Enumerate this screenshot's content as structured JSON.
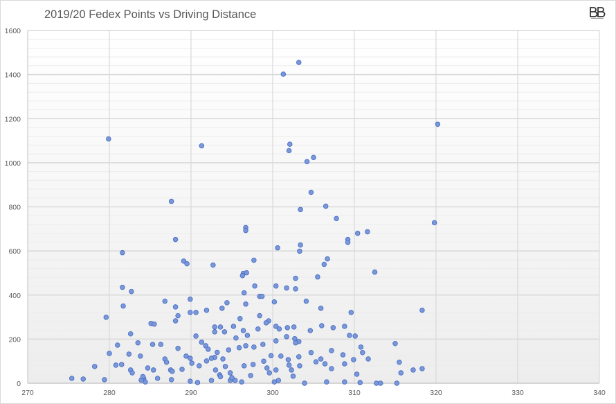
{
  "chart_data": {
    "type": "scatter",
    "title": "2019/20 Fedex Points vs Driving Distance",
    "logo_text": "BB",
    "xlim": [
      270,
      340
    ],
    "ylim": [
      0,
      1600
    ],
    "x_ticks": [
      "270",
      "280",
      "290",
      "300",
      "310",
      "320",
      "330",
      "340"
    ],
    "y_ticks": [
      "0",
      "200",
      "400",
      "600",
      "800",
      "1000",
      "1200",
      "1400",
      "1600"
    ],
    "grid": true,
    "legend": "none",
    "marker_color": "#7a97d8",
    "marker_edge": "#4a6fc6",
    "points": [
      [
        279.9,
        1108
      ],
      [
        291.3,
        1077
      ],
      [
        301.3,
        1402
      ],
      [
        303.2,
        1455
      ],
      [
        302.1,
        1084
      ],
      [
        302.0,
        1055
      ],
      [
        305.0,
        1024
      ],
      [
        304.2,
        1005
      ],
      [
        320.2,
        1175
      ],
      [
        287.6,
        825
      ],
      [
        288.1,
        652
      ],
      [
        319.8,
        728
      ],
      [
        296.7,
        706
      ],
      [
        296.7,
        693
      ],
      [
        304.7,
        866
      ],
      [
        306.5,
        803
      ],
      [
        307.8,
        747
      ],
      [
        303.4,
        788
      ],
      [
        310.4,
        680
      ],
      [
        311.6,
        687
      ],
      [
        309.2,
        652
      ],
      [
        309.2,
        639
      ],
      [
        300.6,
        614
      ],
      [
        303.4,
        627
      ],
      [
        303.3,
        599
      ],
      [
        281.6,
        592
      ],
      [
        297.7,
        558
      ],
      [
        289.1,
        554
      ],
      [
        289.5,
        542
      ],
      [
        292.7,
        536
      ],
      [
        306.7,
        564
      ],
      [
        306.3,
        539
      ],
      [
        312.5,
        504
      ],
      [
        296.4,
        498
      ],
      [
        296.8,
        501
      ],
      [
        296.3,
        488
      ],
      [
        305.5,
        482
      ],
      [
        302.8,
        476
      ],
      [
        281.6,
        435
      ],
      [
        282.7,
        416
      ],
      [
        297.8,
        441
      ],
      [
        300.4,
        441
      ],
      [
        301.7,
        432
      ],
      [
        302.8,
        428
      ],
      [
        296.5,
        410
      ],
      [
        298.4,
        394
      ],
      [
        298.7,
        394
      ],
      [
        289.9,
        381
      ],
      [
        286.8,
        372
      ],
      [
        294.4,
        365
      ],
      [
        296.7,
        359
      ],
      [
        304.1,
        372
      ],
      [
        300.2,
        369
      ],
      [
        281.7,
        350
      ],
      [
        288.1,
        346
      ],
      [
        293.8,
        340
      ],
      [
        305.9,
        340
      ],
      [
        318.3,
        331
      ],
      [
        289.9,
        321
      ],
      [
        290.6,
        321
      ],
      [
        309.6,
        321
      ],
      [
        279.6,
        299
      ],
      [
        291.9,
        331
      ],
      [
        288.4,
        306
      ],
      [
        296.0,
        293
      ],
      [
        298.4,
        306
      ],
      [
        299.5,
        283
      ],
      [
        299.2,
        274
      ],
      [
        288.1,
        283
      ],
      [
        285.1,
        271
      ],
      [
        285.5,
        268
      ],
      [
        295.2,
        258
      ],
      [
        292.9,
        255
      ],
      [
        293.6,
        255
      ],
      [
        300.4,
        258
      ],
      [
        301.8,
        252
      ],
      [
        302.6,
        255
      ],
      [
        300.8,
        246
      ],
      [
        296.4,
        239
      ],
      [
        298.2,
        246
      ],
      [
        306.0,
        261
      ],
      [
        307.4,
        252
      ],
      [
        308.8,
        258
      ],
      [
        282.6,
        224
      ],
      [
        290.6,
        214
      ],
      [
        292.9,
        233
      ],
      [
        294.1,
        233
      ],
      [
        295.5,
        205
      ],
      [
        296.9,
        217
      ],
      [
        302.7,
        202
      ],
      [
        303.2,
        189
      ],
      [
        304.6,
        239
      ],
      [
        310.1,
        214
      ],
      [
        309.4,
        217
      ],
      [
        315.0,
        180
      ],
      [
        310.8,
        164
      ],
      [
        301.7,
        211
      ],
      [
        281.0,
        173
      ],
      [
        283.5,
        183
      ],
      [
        285.3,
        176
      ],
      [
        286.3,
        176
      ],
      [
        288.4,
        158
      ],
      [
        291.3,
        186
      ],
      [
        291.8,
        170
      ],
      [
        292.1,
        154
      ],
      [
        294.6,
        151
      ],
      [
        295.9,
        161
      ],
      [
        296.7,
        170
      ],
      [
        297.7,
        164
      ],
      [
        298.8,
        176
      ],
      [
        302.8,
        183
      ],
      [
        300.4,
        192
      ],
      [
        304.7,
        139
      ],
      [
        307.2,
        148
      ],
      [
        311.0,
        139
      ],
      [
        308.6,
        129
      ],
      [
        280.0,
        135
      ],
      [
        282.4,
        132
      ],
      [
        283.8,
        123
      ],
      [
        286.8,
        110
      ],
      [
        289.4,
        123
      ],
      [
        289.9,
        113
      ],
      [
        292.9,
        117
      ],
      [
        293.9,
        110
      ],
      [
        301.0,
        123
      ],
      [
        301.9,
        107
      ],
      [
        303.2,
        120
      ],
      [
        305.9,
        110
      ],
      [
        311.7,
        110
      ],
      [
        309.9,
        107
      ],
      [
        280.8,
        82
      ],
      [
        278.2,
        76
      ],
      [
        281.5,
        85
      ],
      [
        282.6,
        60
      ],
      [
        282.8,
        47
      ],
      [
        284.7,
        69
      ],
      [
        285.4,
        60
      ],
      [
        287.5,
        60
      ],
      [
        287.7,
        54
      ],
      [
        288.9,
        63
      ],
      [
        290.1,
        91
      ],
      [
        291.0,
        79
      ],
      [
        291.9,
        101
      ],
      [
        292.5,
        113
      ],
      [
        293.0,
        60
      ],
      [
        293.5,
        38
      ],
      [
        294.2,
        76
      ],
      [
        294.8,
        47
      ],
      [
        296.5,
        79
      ],
      [
        297.3,
        35
      ],
      [
        297.6,
        85
      ],
      [
        299.3,
        69
      ],
      [
        299.6,
        47
      ],
      [
        300.4,
        60
      ],
      [
        302.0,
        82
      ],
      [
        302.3,
        60
      ],
      [
        303.3,
        79
      ],
      [
        306.4,
        88
      ],
      [
        307.2,
        66
      ],
      [
        308.8,
        88
      ],
      [
        310.3,
        41
      ],
      [
        315.7,
        47
      ],
      [
        318.3,
        66
      ],
      [
        315.5,
        95
      ],
      [
        317.2,
        60
      ],
      [
        284.2,
        22
      ],
      [
        285.9,
        22
      ],
      [
        287.6,
        16
      ],
      [
        289.9,
        9
      ],
      [
        292.5,
        13
      ],
      [
        294.8,
        13
      ],
      [
        295.4,
        13
      ],
      [
        296.2,
        6
      ],
      [
        300.2,
        6
      ],
      [
        300.7,
        13
      ],
      [
        303.9,
        0
      ],
      [
        306.6,
        6
      ],
      [
        308.8,
        6
      ],
      [
        312.7,
        0
      ],
      [
        313.2,
        0
      ],
      [
        315.2,
        0
      ],
      [
        276.8,
        19
      ],
      [
        279.4,
        16
      ],
      [
        275.4,
        22
      ],
      [
        284.4,
        6
      ],
      [
        290.8,
        3
      ],
      [
        310.7,
        3
      ],
      [
        283.9,
        14
      ],
      [
        284.1,
        30
      ],
      [
        293.6,
        30
      ],
      [
        295.0,
        25
      ],
      [
        302.5,
        32
      ],
      [
        298.9,
        100
      ],
      [
        305.3,
        97
      ],
      [
        287.0,
        95
      ],
      [
        293.2,
        140
      ],
      [
        299.8,
        125
      ]
    ]
  }
}
